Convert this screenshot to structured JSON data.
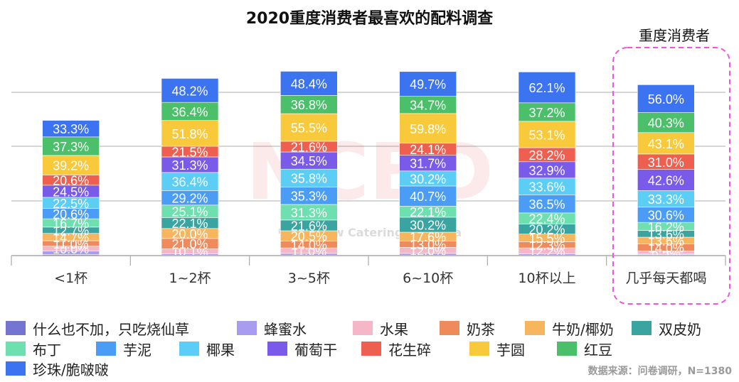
{
  "title": "2020重度消费者最喜欢的配料调查",
  "highlight_label": "重度消费者",
  "source": "数据来源：问卷调研，N=1380",
  "watermark": "NCBD 餐宝典 New Catering Big Data",
  "chart_data": {
    "type": "bar",
    "stacked": true,
    "categories": [
      "<1杯",
      "1~2杯",
      "3~5杯",
      "6~10杯",
      "10杯以上",
      "几乎每天都喝"
    ],
    "series": [
      {
        "name": "什么也不加，只吃烧仙草",
        "color": "#7475d0",
        "values": [
          2.0,
          0.9,
          1.0,
          1.0,
          0.8,
          1.5
        ]
      },
      {
        "name": "蜂蜜水",
        "color": "#a89cf0",
        "values": [
          7.0,
          2.5,
          3.5,
          3.5,
          2.5,
          1.5
        ]
      },
      {
        "name": "水果",
        "color": "#f5b6c8",
        "values": [
          10.0,
          10.1,
          11.0,
          12.0,
          12.2,
          6.5
        ]
      },
      {
        "name": "奶茶",
        "color": "#ef8a5c",
        "values": [
          11.0,
          21.0,
          14.0,
          13.0,
          12.3,
          14.0
        ]
      },
      {
        "name": "牛奶/椰奶",
        "color": "#f7b55e",
        "values": [
          14.7,
          20.0,
          20.5,
          17.6,
          15.5,
          13.6
        ]
      },
      {
        "name": "双皮奶",
        "color": "#3aa5a0",
        "values": [
          12.7,
          22.1,
          21.6,
          30.2,
          20.2,
          13.6
        ]
      },
      {
        "name": "布丁",
        "color": "#6ee0b0",
        "values": [
          16.7,
          25.1,
          31.3,
          22.1,
          22.4,
          16.2
        ]
      },
      {
        "name": "芋泥",
        "color": "#4a9cf5",
        "values": [
          20.6,
          29.2,
          35.3,
          40.7,
          36.5,
          30.6
        ]
      },
      {
        "name": "椰果",
        "color": "#5ccdf5",
        "values": [
          22.5,
          36.4,
          35.8,
          30.2,
          33.6,
          33.3
        ]
      },
      {
        "name": "葡萄干",
        "color": "#7a5ae8",
        "values": [
          24.5,
          31.3,
          34.5,
          31.7,
          32.9,
          42.6
        ]
      },
      {
        "name": "花生碎",
        "color": "#ef5f4f",
        "values": [
          20.6,
          21.5,
          21.6,
          24.1,
          28.2,
          31.0
        ]
      },
      {
        "name": "芋圆",
        "color": "#f8c93a",
        "values": [
          39.2,
          51.8,
          55.5,
          59.8,
          53.1,
          43.1
        ]
      },
      {
        "name": "红豆",
        "color": "#4cbf6a",
        "values": [
          37.3,
          36.4,
          36.8,
          34.7,
          37.2,
          40.3
        ]
      },
      {
        "name": "珍珠/脆啵啵",
        "color": "#3b73f0",
        "values": [
          33.3,
          48.2,
          48.4,
          49.7,
          62.1,
          56.0
        ]
      }
    ],
    "data_labels": [
      [
        "",
        "",
        "10.0%",
        "11.0%",
        "14.7%",
        "12.7%",
        "16.7%",
        "20.6%",
        "22.5%",
        "24.5%",
        "20.6%",
        "39.2%",
        "37.3%",
        "33.3%"
      ],
      [
        "",
        "",
        "10.1%",
        "21.0%",
        "20.0%",
        "22.1%",
        "25.1%",
        "29.2%",
        "36.4%",
        "31.3%",
        "21.5%",
        "51.8%",
        "36.4%",
        "48.2%"
      ],
      [
        "",
        "",
        "11.0%",
        "14.0%",
        "20.5%",
        "21.6%",
        "31.3%",
        "35.3%",
        "35.8%",
        "34.5%",
        "21.6%",
        "55.5%",
        "36.8%",
        "48.4%"
      ],
      [
        "",
        "",
        "12.0%",
        "13.0%",
        "17.6%",
        "30.2%",
        "22.1%",
        "40.7%",
        "30.2%",
        "31.7%",
        "24.1%",
        "59.8%",
        "34.7%",
        "49.7%"
      ],
      [
        "",
        "",
        "12.2%",
        "12.3%",
        "15.5%",
        "20.2%",
        "22.4%",
        "36.5%",
        "33.6%",
        "32.9%",
        "28.2%",
        "53.1%",
        "37.2%",
        "62.1%"
      ],
      [
        "",
        "",
        "6.5%",
        "14.0%",
        "13.6%",
        "13.6%",
        "16.2%",
        "30.6%",
        "33.3%",
        "42.6%",
        "31.0%",
        "43.1%",
        "40.3%",
        "56.0%"
      ]
    ],
    "grid": true,
    "legend": "bottom",
    "xlabel": "",
    "ylabel": ""
  }
}
